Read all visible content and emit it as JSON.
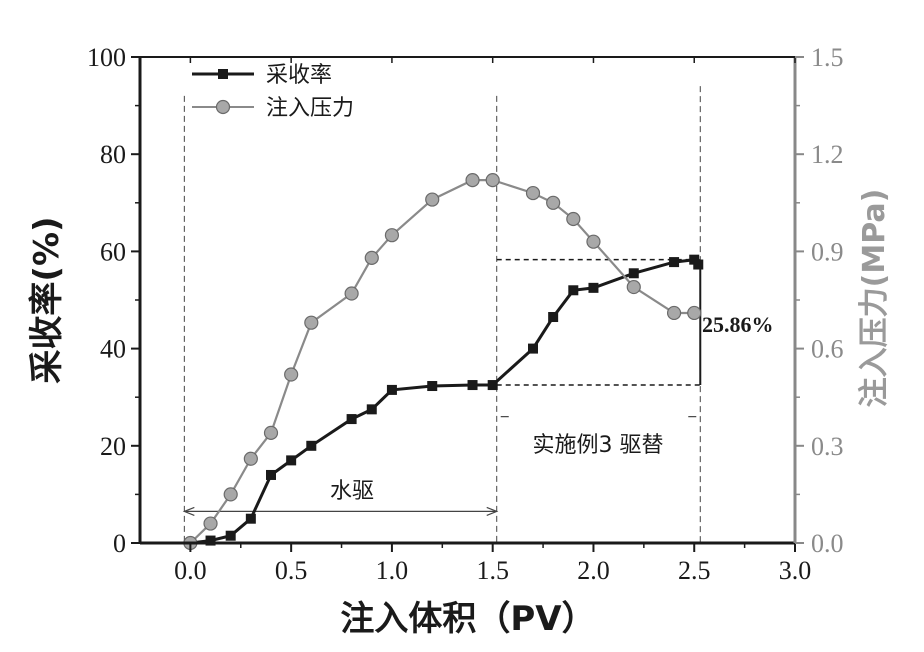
{
  "chart_data": {
    "type": "line",
    "xlabel": "注入体积（PV）",
    "ylabel_left": "采收率(%)",
    "ylabel_right": "注入压力(MPa)",
    "xlim": [
      -0.25,
      3.0
    ],
    "ylim_left": [
      0,
      100
    ],
    "ylim_right": [
      0,
      1.5
    ],
    "x_ticks": [
      "0.0",
      "0.5",
      "1.0",
      "1.5",
      "2.0",
      "2.5",
      "3.0"
    ],
    "y_left_ticks": [
      "0",
      "20",
      "40",
      "60",
      "80",
      "100"
    ],
    "y_right_ticks": [
      "0.0",
      "0.3",
      "0.6",
      "0.9",
      "1.2",
      "1.5"
    ],
    "series": [
      {
        "name": "采收率",
        "axis": "left",
        "color": "#1a1a1a",
        "marker": "square",
        "x": [
          0,
          0.1,
          0.2,
          0.3,
          0.4,
          0.5,
          0.6,
          0.8,
          0.9,
          1.0,
          1.2,
          1.4,
          1.5,
          1.7,
          1.8,
          1.9,
          2.0,
          2.2,
          2.4,
          2.5,
          2.52
        ],
        "y": [
          0,
          0.5,
          1.5,
          5,
          14,
          17,
          20,
          25.5,
          27.5,
          31.5,
          32.3,
          32.5,
          32.5,
          40,
          46.5,
          52,
          52.5,
          55.5,
          57.8,
          58.3,
          57.3
        ]
      },
      {
        "name": "注入压力",
        "axis": "right",
        "color": "#8a8a8a",
        "marker": "circle",
        "x": [
          0,
          0.1,
          0.2,
          0.3,
          0.4,
          0.5,
          0.6,
          0.8,
          0.9,
          1.0,
          1.2,
          1.4,
          1.5,
          1.7,
          1.8,
          1.9,
          2.0,
          2.2,
          2.4,
          2.5
        ],
        "y": [
          0,
          0.06,
          0.15,
          0.26,
          0.34,
          0.52,
          0.68,
          0.77,
          0.88,
          0.95,
          1.06,
          1.12,
          1.12,
          1.08,
          1.05,
          1.0,
          0.93,
          0.79,
          0.71,
          0.71
        ]
      }
    ],
    "legend": {
      "position": "top-left"
    },
    "annotations": {
      "water_flood": "水驱",
      "example_flood": "实施例3 驱替",
      "increase": "25.86%",
      "increase_from": 32.5,
      "increase_to": 58.3
    },
    "grid": false
  }
}
